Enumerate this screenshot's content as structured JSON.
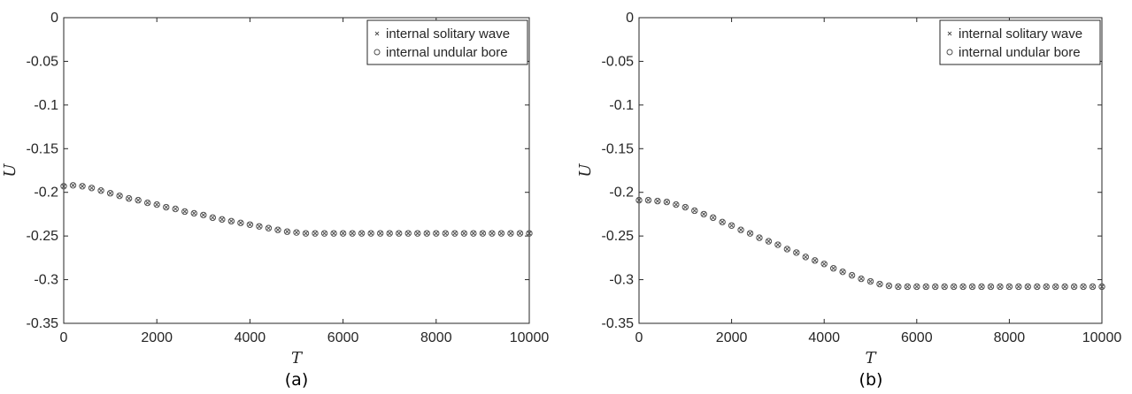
{
  "chart_data": [
    {
      "type": "scatter",
      "panel_label": "(a)",
      "xlabel": "T",
      "ylabel": "U",
      "xlim": [
        0,
        10000
      ],
      "ylim": [
        -0.35,
        0
      ],
      "xticks": [
        0,
        2000,
        4000,
        6000,
        8000,
        10000
      ],
      "yticks": [
        0,
        -0.05,
        -0.1,
        -0.15,
        -0.2,
        -0.25,
        -0.3,
        -0.35
      ],
      "xtick_labels": [
        "0",
        "2000",
        "4000",
        "6000",
        "8000",
        "10000"
      ],
      "ytick_labels": [
        "0",
        "-0.05",
        "-0.1",
        "-0.15",
        "-0.2",
        "-0.25",
        "-0.3",
        "-0.35"
      ],
      "legend_position": "top-right",
      "grid": false,
      "series": [
        {
          "name": "internal solitary wave",
          "marker": "x",
          "x": [
            0,
            200,
            400,
            600,
            800,
            1000,
            1200,
            1400,
            1600,
            1800,
            2000,
            2200,
            2400,
            2600,
            2800,
            3000,
            3200,
            3400,
            3600,
            3800,
            4000,
            4200,
            4400,
            4600,
            4800,
            5000,
            5200,
            5400,
            5600,
            5800,
            6000,
            6200,
            6400,
            6600,
            6800,
            7000,
            7200,
            7400,
            7600,
            7800,
            8000,
            8200,
            8400,
            8600,
            8800,
            9000,
            9200,
            9400,
            9600,
            9800,
            10000
          ],
          "y": [
            -0.193,
            -0.192,
            -0.193,
            -0.195,
            -0.198,
            -0.201,
            -0.204,
            -0.207,
            -0.209,
            -0.212,
            -0.214,
            -0.217,
            -0.219,
            -0.222,
            -0.224,
            -0.226,
            -0.229,
            -0.231,
            -0.233,
            -0.235,
            -0.237,
            -0.239,
            -0.241,
            -0.243,
            -0.245,
            -0.246,
            -0.247,
            -0.247,
            -0.247,
            -0.247,
            -0.247,
            -0.247,
            -0.247,
            -0.247,
            -0.247,
            -0.247,
            -0.247,
            -0.247,
            -0.247,
            -0.247,
            -0.247,
            -0.247,
            -0.247,
            -0.247,
            -0.247,
            -0.247,
            -0.247,
            -0.247,
            -0.247,
            -0.247,
            -0.247
          ]
        },
        {
          "name": "internal undular bore",
          "marker": "o",
          "x": [
            0,
            200,
            400,
            600,
            800,
            1000,
            1200,
            1400,
            1600,
            1800,
            2000,
            2200,
            2400,
            2600,
            2800,
            3000,
            3200,
            3400,
            3600,
            3800,
            4000,
            4200,
            4400,
            4600,
            4800,
            5000,
            5200,
            5400,
            5600,
            5800,
            6000,
            6200,
            6400,
            6600,
            6800,
            7000,
            7200,
            7400,
            7600,
            7800,
            8000,
            8200,
            8400,
            8600,
            8800,
            9000,
            9200,
            9400,
            9600,
            9800,
            10000
          ],
          "y": [
            -0.193,
            -0.192,
            -0.193,
            -0.195,
            -0.198,
            -0.201,
            -0.204,
            -0.207,
            -0.209,
            -0.212,
            -0.214,
            -0.217,
            -0.219,
            -0.222,
            -0.224,
            -0.226,
            -0.229,
            -0.231,
            -0.233,
            -0.235,
            -0.237,
            -0.239,
            -0.241,
            -0.243,
            -0.245,
            -0.246,
            -0.247,
            -0.247,
            -0.247,
            -0.247,
            -0.247,
            -0.247,
            -0.247,
            -0.247,
            -0.247,
            -0.247,
            -0.247,
            -0.247,
            -0.247,
            -0.247,
            -0.247,
            -0.247,
            -0.247,
            -0.247,
            -0.247,
            -0.247,
            -0.247,
            -0.247,
            -0.247,
            -0.247,
            -0.247
          ]
        }
      ]
    },
    {
      "type": "scatter",
      "panel_label": "(b)",
      "xlabel": "T",
      "ylabel": "U",
      "xlim": [
        0,
        10000
      ],
      "ylim": [
        -0.35,
        0
      ],
      "xticks": [
        0,
        2000,
        4000,
        6000,
        8000,
        10000
      ],
      "yticks": [
        0,
        -0.05,
        -0.1,
        -0.15,
        -0.2,
        -0.25,
        -0.3,
        -0.35
      ],
      "xtick_labels": [
        "0",
        "2000",
        "4000",
        "6000",
        "8000",
        "10000"
      ],
      "ytick_labels": [
        "0",
        "-0.05",
        "-0.1",
        "-0.15",
        "-0.2",
        "-0.25",
        "-0.3",
        "-0.35"
      ],
      "legend_position": "top-right",
      "grid": false,
      "series": [
        {
          "name": "internal solitary wave",
          "marker": "x",
          "x": [
            0,
            200,
            400,
            600,
            800,
            1000,
            1200,
            1400,
            1600,
            1800,
            2000,
            2200,
            2400,
            2600,
            2800,
            3000,
            3200,
            3400,
            3600,
            3800,
            4000,
            4200,
            4400,
            4600,
            4800,
            5000,
            5200,
            5400,
            5600,
            5800,
            6000,
            6200,
            6400,
            6600,
            6800,
            7000,
            7200,
            7400,
            7600,
            7800,
            8000,
            8200,
            8400,
            8600,
            8800,
            9000,
            9200,
            9400,
            9600,
            9800,
            10000
          ],
          "y": [
            -0.209,
            -0.209,
            -0.21,
            -0.211,
            -0.214,
            -0.217,
            -0.221,
            -0.225,
            -0.229,
            -0.234,
            -0.238,
            -0.243,
            -0.247,
            -0.252,
            -0.256,
            -0.26,
            -0.265,
            -0.269,
            -0.274,
            -0.278,
            -0.282,
            -0.287,
            -0.291,
            -0.295,
            -0.299,
            -0.302,
            -0.305,
            -0.307,
            -0.308,
            -0.308,
            -0.308,
            -0.308,
            -0.308,
            -0.308,
            -0.308,
            -0.308,
            -0.308,
            -0.308,
            -0.308,
            -0.308,
            -0.308,
            -0.308,
            -0.308,
            -0.308,
            -0.308,
            -0.308,
            -0.308,
            -0.308,
            -0.308,
            -0.308,
            -0.308
          ]
        },
        {
          "name": "internal undular bore",
          "marker": "o",
          "x": [
            0,
            200,
            400,
            600,
            800,
            1000,
            1200,
            1400,
            1600,
            1800,
            2000,
            2200,
            2400,
            2600,
            2800,
            3000,
            3200,
            3400,
            3600,
            3800,
            4000,
            4200,
            4400,
            4600,
            4800,
            5000,
            5200,
            5400,
            5600,
            5800,
            6000,
            6200,
            6400,
            6600,
            6800,
            7000,
            7200,
            7400,
            7600,
            7800,
            8000,
            8200,
            8400,
            8600,
            8800,
            9000,
            9200,
            9400,
            9600,
            9800,
            10000
          ],
          "y": [
            -0.209,
            -0.209,
            -0.21,
            -0.211,
            -0.214,
            -0.217,
            -0.221,
            -0.225,
            -0.229,
            -0.234,
            -0.238,
            -0.243,
            -0.247,
            -0.252,
            -0.256,
            -0.26,
            -0.265,
            -0.269,
            -0.274,
            -0.278,
            -0.282,
            -0.287,
            -0.291,
            -0.295,
            -0.299,
            -0.302,
            -0.305,
            -0.307,
            -0.308,
            -0.308,
            -0.308,
            -0.308,
            -0.308,
            -0.308,
            -0.308,
            -0.308,
            -0.308,
            -0.308,
            -0.308,
            -0.308,
            -0.308,
            -0.308,
            -0.308,
            -0.308,
            -0.308,
            -0.308,
            -0.308,
            -0.308,
            -0.308,
            -0.308,
            -0.308
          ]
        }
      ]
    }
  ],
  "colors": {
    "axis": "#262626",
    "marker": "#505050",
    "background": "#ffffff"
  }
}
